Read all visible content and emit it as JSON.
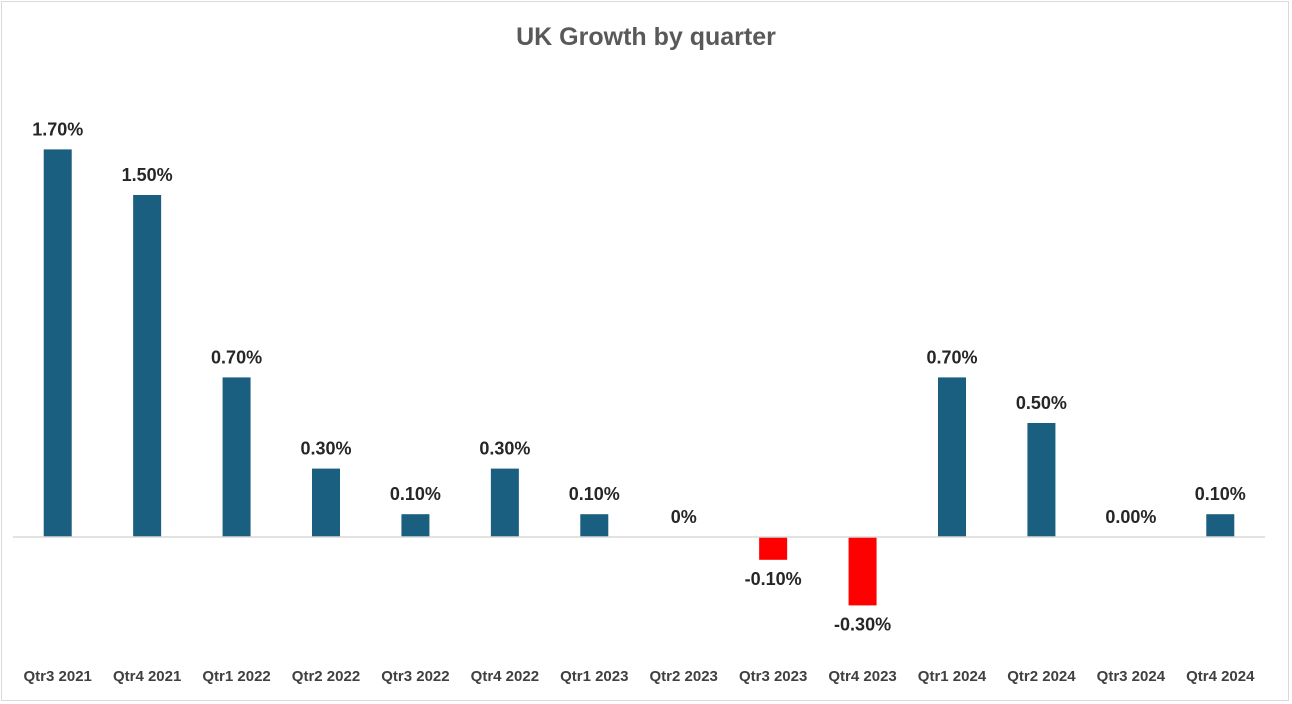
{
  "chart_data": {
    "type": "bar",
    "title": "UK Growth by quarter",
    "xlabel": "",
    "ylabel": "",
    "categories": [
      "Qtr3 2021",
      "Qtr4 2021",
      "Qtr1 2022",
      "Qtr2 2022",
      "Qtr3 2022",
      "Qtr4 2022",
      "Qtr1 2023",
      "Qtr2 2023",
      "Qtr3 2023",
      "Qtr4 2023",
      "Qtr1 2024",
      "Qtr2 2024",
      "Qtr3 2024",
      "Qtr4 2024"
    ],
    "values": [
      1.7,
      1.5,
      0.7,
      0.3,
      0.1,
      0.3,
      0.1,
      0,
      -0.1,
      -0.3,
      0.7,
      0.5,
      0.0,
      0.1
    ],
    "data_labels": [
      "1.70%",
      "1.50%",
      "0.70%",
      "0.30%",
      "0.10%",
      "0.30%",
      "0.10%",
      "0%",
      "-0.10%",
      "-0.30%",
      "0.70%",
      "0.50%",
      "0.00%",
      "0.10%"
    ],
    "unit": "%",
    "ylim": [
      -0.4,
      1.9
    ],
    "grid": false,
    "legend": "none",
    "colors": {
      "positive": "#1a5e80",
      "negative": "#ff0000",
      "axis": "#d9d9d9"
    }
  }
}
